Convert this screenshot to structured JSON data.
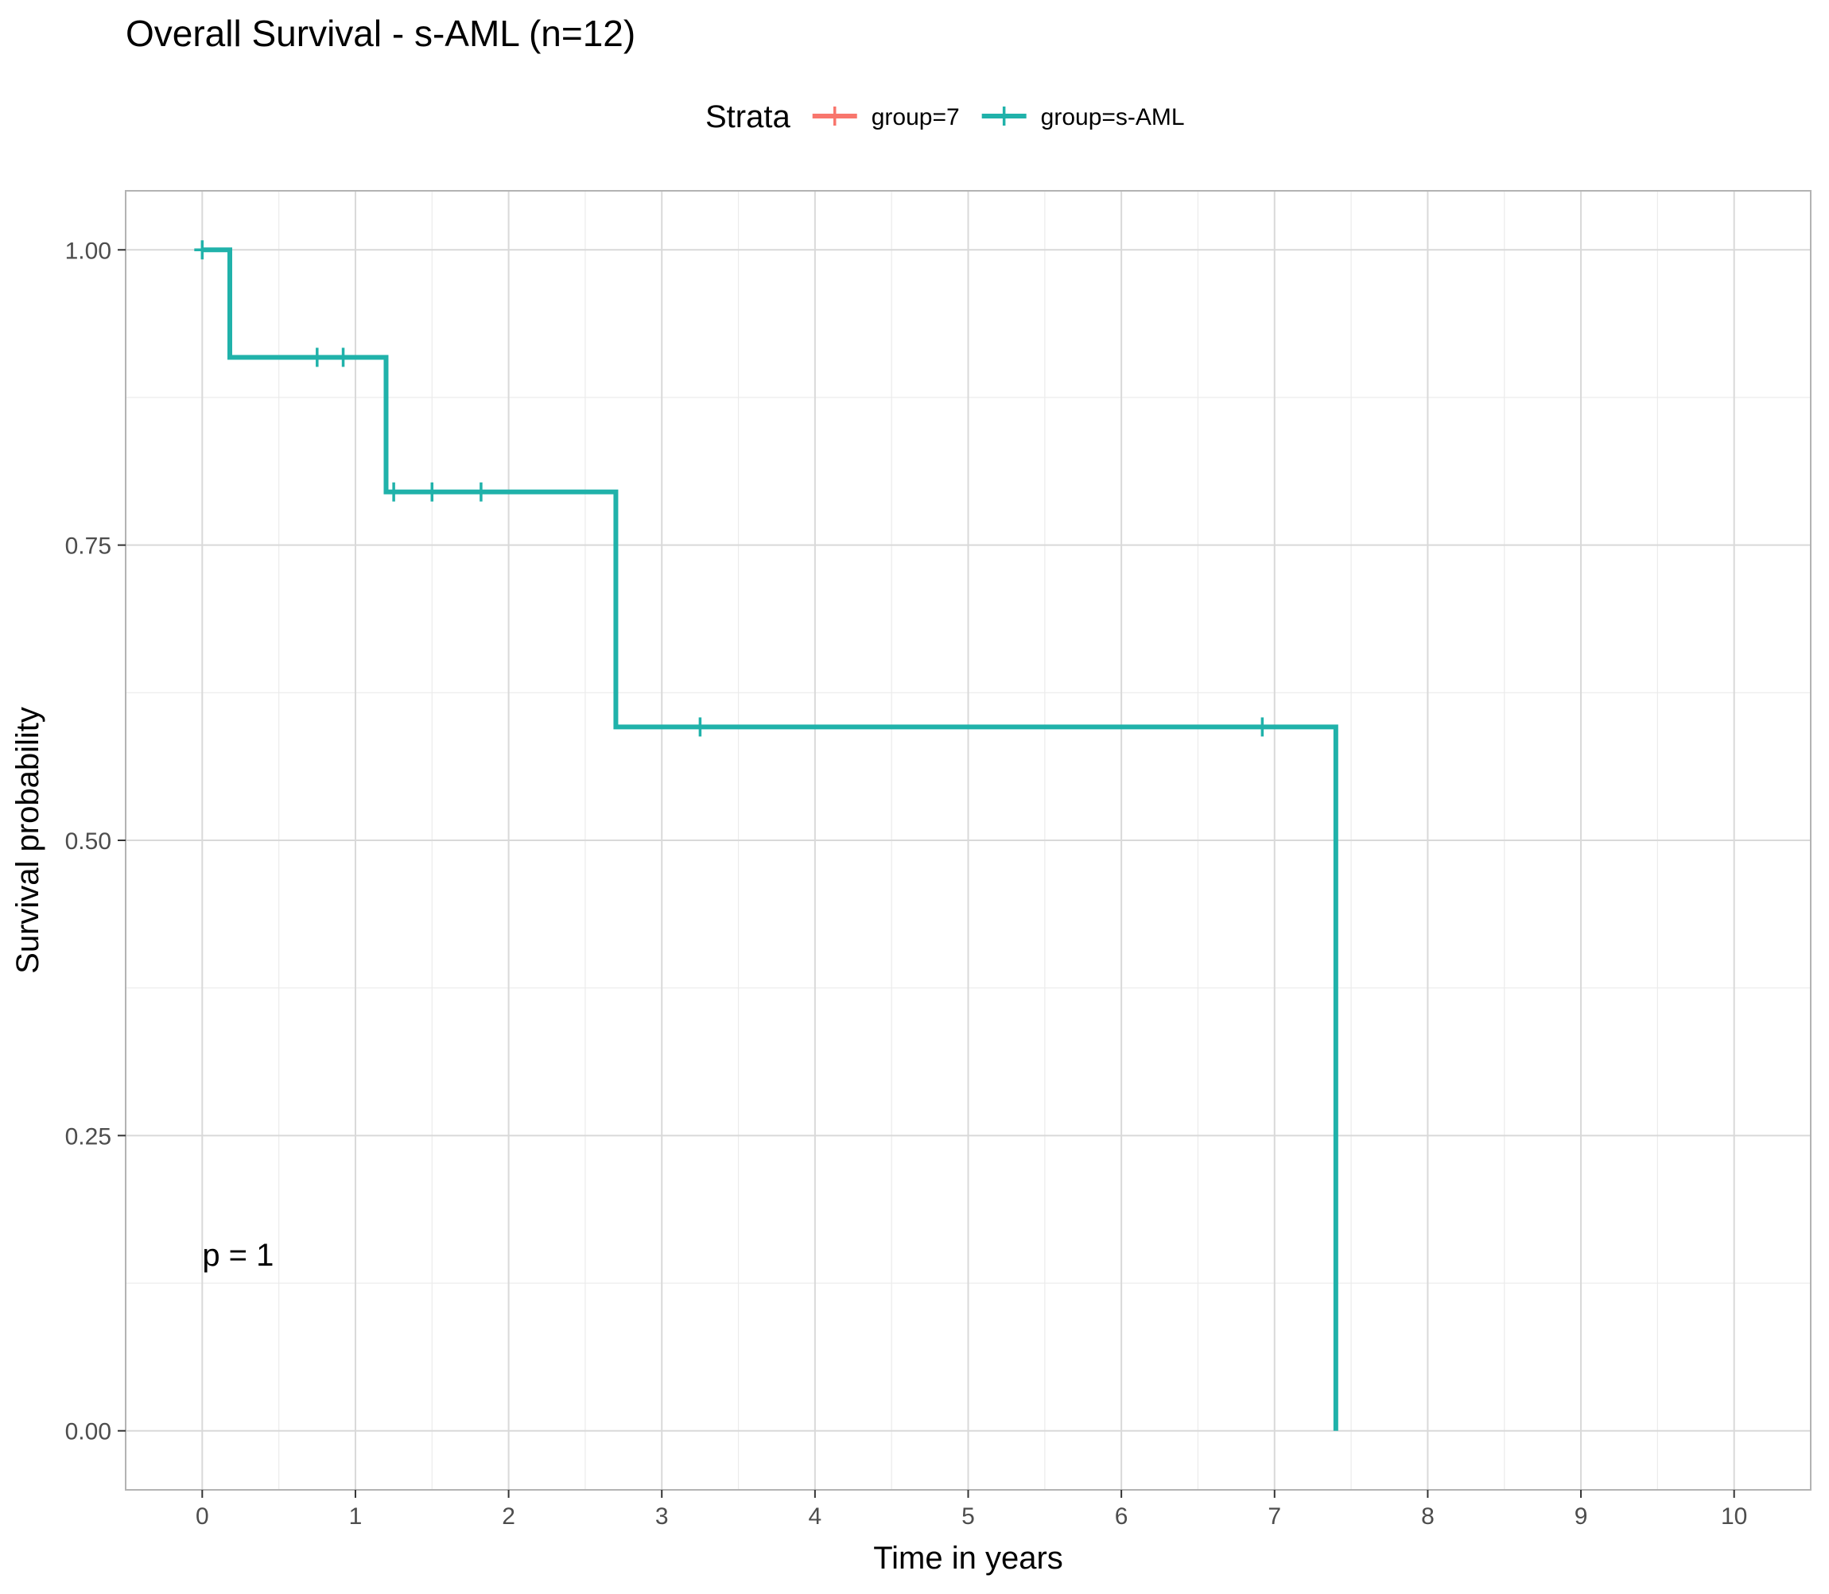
{
  "chart_data": {
    "type": "line",
    "subtype": "kaplan-meier-step",
    "title": "Overall Survival - s-AML (n=12)",
    "xlabel": "Time in years",
    "ylabel": "Survival probability",
    "xlim": [
      -0.5,
      10.5
    ],
    "ylim": [
      -0.05,
      1.05
    ],
    "x_ticks": [
      0,
      1,
      2,
      3,
      4,
      5,
      6,
      7,
      8,
      9,
      10
    ],
    "y_ticks": [
      0.0,
      0.25,
      0.5,
      0.75,
      1.0
    ],
    "y_tick_labels": [
      "0.00",
      "0.25",
      "0.50",
      "0.75",
      "1.00"
    ],
    "grid": true,
    "legend": {
      "title": "Strata",
      "position": "top",
      "entries": [
        {
          "name": "group=7",
          "color": "#F8766D"
        },
        {
          "name": "group=s-AML",
          "color": "#20B2AA"
        }
      ]
    },
    "series": [
      {
        "name": "group=7",
        "color": "#F8766D",
        "steps": [],
        "censor_marks": []
      },
      {
        "name": "group=s-AML",
        "color": "#20B2AA",
        "steps": [
          {
            "x": 0.0,
            "y": 1.0
          },
          {
            "x": 0.18,
            "y": 0.909
          },
          {
            "x": 1.2,
            "y": 0.795
          },
          {
            "x": 2.7,
            "y": 0.596
          },
          {
            "x": 7.4,
            "y": 0.0
          }
        ],
        "censor_marks": [
          {
            "x": 0.0,
            "y": 1.0
          },
          {
            "x": 0.75,
            "y": 0.909
          },
          {
            "x": 0.92,
            "y": 0.909
          },
          {
            "x": 1.25,
            "y": 0.795
          },
          {
            "x": 1.5,
            "y": 0.795
          },
          {
            "x": 1.82,
            "y": 0.795
          },
          {
            "x": 3.25,
            "y": 0.596
          },
          {
            "x": 6.92,
            "y": 0.596
          }
        ]
      }
    ],
    "annotations": [
      {
        "text": "p = 1",
        "x": 0.0,
        "y": 0.14
      }
    ]
  }
}
